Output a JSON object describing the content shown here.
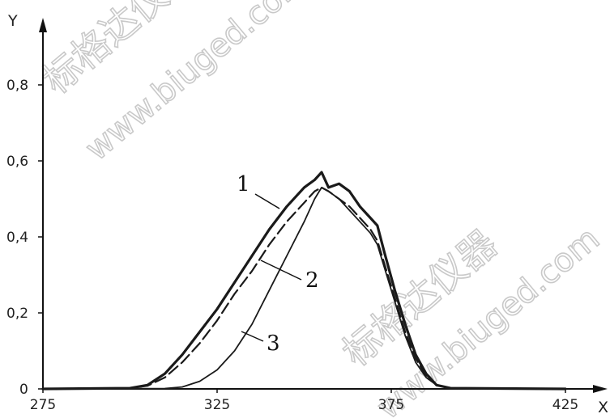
{
  "chart_data": {
    "type": "line",
    "xlabel": "X",
    "ylabel": "Y",
    "xlim": [
      275,
      425
    ],
    "ylim": [
      0,
      0.8
    ],
    "x_ticks": [
      "275",
      "325",
      "375",
      "425"
    ],
    "y_ticks": [
      "0",
      "0,2",
      "0,4",
      "0,6",
      "0,8"
    ],
    "grid": false,
    "series": [
      {
        "name": "1",
        "style": "solid-bold",
        "color": "#1a1a1a",
        "points": [
          [
            275,
            0
          ],
          [
            300,
            0.002
          ],
          [
            305,
            0.01
          ],
          [
            310,
            0.04
          ],
          [
            315,
            0.09
          ],
          [
            320,
            0.15
          ],
          [
            325,
            0.21
          ],
          [
            330,
            0.28
          ],
          [
            335,
            0.35
          ],
          [
            340,
            0.42
          ],
          [
            345,
            0.48
          ],
          [
            350,
            0.53
          ],
          [
            353,
            0.55
          ],
          [
            355,
            0.57
          ],
          [
            357,
            0.53
          ],
          [
            360,
            0.54
          ],
          [
            363,
            0.52
          ],
          [
            366,
            0.48
          ],
          [
            369,
            0.45
          ],
          [
            371,
            0.43
          ],
          [
            373,
            0.36
          ],
          [
            376,
            0.26
          ],
          [
            379,
            0.17
          ],
          [
            382,
            0.09
          ],
          [
            385,
            0.04
          ],
          [
            388,
            0.01
          ],
          [
            392,
            0.002
          ],
          [
            425,
            0
          ]
        ]
      },
      {
        "name": "2",
        "style": "dashed",
        "color": "#1a1a1a",
        "points": [
          [
            275,
            0
          ],
          [
            300,
            0.002
          ],
          [
            305,
            0.008
          ],
          [
            310,
            0.03
          ],
          [
            315,
            0.07
          ],
          [
            320,
            0.12
          ],
          [
            325,
            0.18
          ],
          [
            330,
            0.25
          ],
          [
            335,
            0.31
          ],
          [
            340,
            0.38
          ],
          [
            345,
            0.44
          ],
          [
            350,
            0.49
          ],
          [
            353,
            0.52
          ],
          [
            355,
            0.53
          ],
          [
            357,
            0.52
          ],
          [
            360,
            0.5
          ],
          [
            363,
            0.48
          ],
          [
            366,
            0.45
          ],
          [
            369,
            0.42
          ],
          [
            371,
            0.39
          ],
          [
            373,
            0.33
          ],
          [
            376,
            0.24
          ],
          [
            379,
            0.15
          ],
          [
            382,
            0.08
          ],
          [
            385,
            0.035
          ],
          [
            388,
            0.01
          ],
          [
            392,
            0.002
          ],
          [
            425,
            0
          ]
        ]
      },
      {
        "name": "3",
        "style": "solid-thin",
        "color": "#1a1a1a",
        "points": [
          [
            275,
            0
          ],
          [
            310,
            0.001
          ],
          [
            315,
            0.005
          ],
          [
            320,
            0.02
          ],
          [
            325,
            0.05
          ],
          [
            330,
            0.1
          ],
          [
            335,
            0.17
          ],
          [
            340,
            0.26
          ],
          [
            345,
            0.35
          ],
          [
            350,
            0.44
          ],
          [
            353,
            0.5
          ],
          [
            355,
            0.53
          ],
          [
            357,
            0.52
          ],
          [
            360,
            0.5
          ],
          [
            363,
            0.47
          ],
          [
            366,
            0.44
          ],
          [
            369,
            0.41
          ],
          [
            371,
            0.38
          ],
          [
            373,
            0.32
          ],
          [
            376,
            0.23
          ],
          [
            379,
            0.14
          ],
          [
            382,
            0.07
          ],
          [
            385,
            0.03
          ],
          [
            388,
            0.01
          ],
          [
            392,
            0.002
          ],
          [
            425,
            0
          ]
        ]
      }
    ],
    "curve_labels": [
      "1",
      "2",
      "3"
    ]
  },
  "watermarks": [
    "标格达仪器",
    "www.biuged.com",
    "标格达仪器",
    "www.biuged.com"
  ]
}
